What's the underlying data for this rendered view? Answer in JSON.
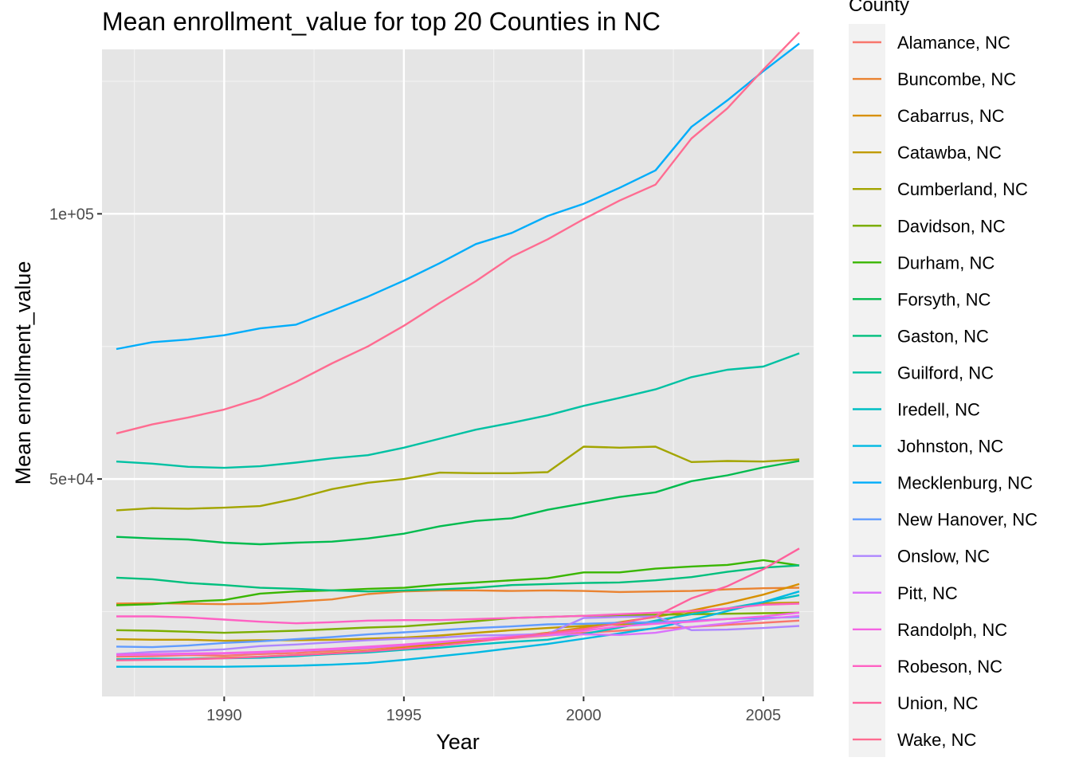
{
  "chart_data": {
    "type": "line",
    "title": "Mean enrollment_value for top 20 Counties in NC",
    "xlabel": "Year",
    "ylabel": "Mean enrollment_value",
    "xlim": [
      1986.6,
      2006.4
    ],
    "ylim": [
      9000,
      131000
    ],
    "x_ticks": [
      1990,
      1995,
      2000,
      2005
    ],
    "x_tick_labels": [
      "1990",
      "1995",
      "2000",
      "2005"
    ],
    "y_ticks": [
      50000,
      100000
    ],
    "y_tick_labels": [
      "5e+04",
      "1e+05"
    ],
    "y_minor_ticks": [
      25000,
      75000,
      125000
    ],
    "x_minor_ticks": [
      1987.5,
      1992.5,
      1997.5,
      2002.5
    ],
    "grid": true,
    "panel_background": "#e5e5e5",
    "legend_title": "County",
    "legend_position": "right",
    "x": [
      1987,
      1988,
      1989,
      1990,
      1991,
      1992,
      1993,
      1994,
      1995,
      1996,
      1997,
      1998,
      1999,
      2000,
      2001,
      2002,
      2003,
      2004,
      2005,
      2006
    ],
    "series": [
      {
        "name": "Alamance, NC",
        "color": "#F8766D",
        "values": [
          16500,
          16600,
          16800,
          16700,
          17000,
          17200,
          17600,
          18000,
          18500,
          19000,
          19500,
          20000,
          20500,
          21000,
          21400,
          21800,
          22100,
          22500,
          22900,
          23300
        ]
      },
      {
        "name": "Buncombe, NC",
        "color": "#EA8331",
        "values": [
          26500,
          26600,
          26500,
          26400,
          26500,
          26900,
          27300,
          28300,
          28800,
          29000,
          29000,
          28900,
          29000,
          28900,
          28700,
          28800,
          28900,
          29200,
          29400,
          29500
        ]
      },
      {
        "name": "Cabarrus, NC",
        "color": "#D89000",
        "values": [
          16000,
          16000,
          16100,
          16300,
          16500,
          16800,
          17200,
          17600,
          18200,
          18900,
          19600,
          20300,
          21000,
          22000,
          23000,
          24000,
          25200,
          26600,
          28200,
          30200
        ]
      },
      {
        "name": "Catawba, NC",
        "color": "#C09B00",
        "values": [
          19800,
          19700,
          19700,
          19500,
          19600,
          19600,
          19700,
          19900,
          20100,
          20500,
          21000,
          21500,
          21900,
          22300,
          22600,
          22900,
          24900,
          25500,
          26600,
          26700
        ]
      },
      {
        "name": "Cumberland, NC",
        "color": "#A3A500",
        "values": [
          44100,
          44500,
          44400,
          44600,
          44900,
          46300,
          48100,
          49300,
          50000,
          51200,
          51100,
          51100,
          51300,
          56100,
          55900,
          56100,
          53200,
          53400,
          53300,
          53700
        ]
      },
      {
        "name": "Davidson, NC",
        "color": "#7CAE00",
        "values": [
          21500,
          21400,
          21200,
          21000,
          21200,
          21400,
          21700,
          22000,
          22200,
          22700,
          23200,
          23800,
          24000,
          24200,
          24300,
          24400,
          24500,
          24600,
          24700,
          24800
        ]
      },
      {
        "name": "Durham, NC",
        "color": "#39B600",
        "values": [
          26200,
          26400,
          26900,
          27200,
          28400,
          28800,
          29000,
          29300,
          29500,
          30100,
          30500,
          30900,
          31300,
          32400,
          32400,
          33100,
          33500,
          33800,
          34700,
          33700
        ]
      },
      {
        "name": "Forsyth, NC",
        "color": "#00BB4E",
        "values": [
          39100,
          38800,
          38600,
          38000,
          37700,
          38000,
          38200,
          38800,
          39700,
          41100,
          42100,
          42600,
          44200,
          45400,
          46600,
          47500,
          49600,
          50700,
          52200,
          53400
        ]
      },
      {
        "name": "Gaston, NC",
        "color": "#00BF7D",
        "values": [
          31400,
          31100,
          30400,
          30000,
          29500,
          29300,
          29000,
          28800,
          29000,
          29200,
          29500,
          30000,
          30200,
          30400,
          30500,
          30900,
          31500,
          32500,
          33300,
          33700
        ]
      },
      {
        "name": "Guilford, NC",
        "color": "#00C1A3",
        "values": [
          53300,
          52900,
          52300,
          52100,
          52400,
          53100,
          53900,
          54500,
          55900,
          57600,
          59300,
          60600,
          62000,
          63800,
          65300,
          66900,
          69200,
          70600,
          71200,
          73700
        ]
      },
      {
        "name": "Iredell, NC",
        "color": "#00BFC4",
        "values": [
          16000,
          16100,
          16100,
          16200,
          16300,
          16600,
          17000,
          17300,
          17800,
          18200,
          18800,
          19300,
          19700,
          20800,
          22000,
          23300,
          24500,
          25600,
          26800,
          28100
        ]
      },
      {
        "name": "Johnston, NC",
        "color": "#00B9E3",
        "values": [
          14600,
          14600,
          14600,
          14600,
          14700,
          14800,
          15000,
          15300,
          15900,
          16600,
          17300,
          18100,
          18900,
          19900,
          20900,
          21900,
          23400,
          25100,
          26800,
          28800
        ]
      },
      {
        "name": "Mecklenburg, NC",
        "color": "#00ADFA",
        "values": [
          74500,
          75800,
          76300,
          77100,
          78400,
          79100,
          81700,
          84400,
          87400,
          90700,
          94300,
          96400,
          99600,
          101900,
          104900,
          108200,
          116400,
          121400,
          126900,
          132100
        ]
      },
      {
        "name": "New Hanover, NC",
        "color": "#619CFF",
        "values": [
          18400,
          18300,
          18600,
          19100,
          19400,
          19800,
          20200,
          20700,
          21100,
          21500,
          21900,
          22200,
          22600,
          22700,
          22900,
          23000,
          23300,
          23600,
          23800,
          24000
        ]
      },
      {
        "name": "Onslow, NC",
        "color": "#AE87FF",
        "values": [
          17000,
          17400,
          17600,
          17900,
          18500,
          18800,
          19200,
          19600,
          19900,
          20100,
          20500,
          20600,
          20800,
          23800,
          24000,
          24100,
          21500,
          21600,
          21900,
          22300
        ]
      },
      {
        "name": "Pitt, NC",
        "color": "#DB72FB",
        "values": [
          16800,
          16900,
          17000,
          17100,
          17300,
          17600,
          17900,
          18200,
          18700,
          19200,
          19800,
          20100,
          20600,
          20700,
          20600,
          21000,
          22100,
          22800,
          23600,
          24200
        ]
      },
      {
        "name": "Randolph, NC",
        "color": "#F564E3",
        "values": [
          16900,
          17000,
          17100,
          17200,
          17400,
          17700,
          18000,
          18400,
          18800,
          19300,
          19800,
          20300,
          20800,
          21400,
          22200,
          22700,
          23100,
          23600,
          24100,
          24800
        ]
      },
      {
        "name": "Robeson, NC",
        "color": "#FF61C3",
        "values": [
          24100,
          24100,
          23900,
          23500,
          23100,
          22800,
          23000,
          23300,
          23400,
          23400,
          23600,
          23800,
          24000,
          24200,
          24500,
          24800,
          25100,
          25600,
          26300,
          26500
        ]
      },
      {
        "name": "Union, NC",
        "color": "#FF619C",
        "values": [
          15800,
          15900,
          16000,
          16200,
          16500,
          16800,
          17100,
          17500,
          18000,
          18600,
          19300,
          20100,
          20900,
          21700,
          22800,
          24100,
          27500,
          29800,
          33000,
          36900
        ]
      },
      {
        "name": "Wake, NC",
        "color": "#FF6C91",
        "values": [
          58600,
          60300,
          61600,
          63100,
          65200,
          68300,
          71800,
          75000,
          78900,
          83200,
          87300,
          91900,
          95200,
          99000,
          102500,
          105500,
          114200,
          119900,
          127200,
          134200
        ]
      }
    ]
  }
}
